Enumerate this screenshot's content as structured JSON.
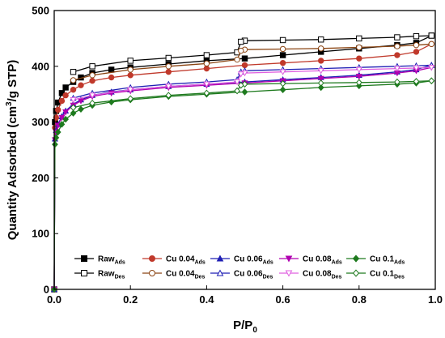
{
  "chart_data": {
    "type": "scatter",
    "xlabel_main": "P/P",
    "xlabel_sub": "0",
    "ylabel_prefix": "Quantity Adsorbed (cm",
    "ylabel_sup": "3",
    "ylabel_suffix": "/g STP)",
    "xlim": [
      0.0,
      1.0
    ],
    "ylim": [
      0,
      500
    ],
    "xticks": [
      "0.0",
      "0.2",
      "0.4",
      "0.6",
      "0.8",
      "1.0"
    ],
    "yticks": [
      "0",
      "100",
      "200",
      "300",
      "400",
      "500"
    ],
    "grid": false,
    "legend_position": "bottom-right",
    "series": [
      {
        "name": "Raw",
        "sub": "Ads",
        "color": "#000000",
        "marker": "square",
        "filled": true,
        "x": [
          0.0,
          0.002,
          0.005,
          0.01,
          0.02,
          0.03,
          0.05,
          0.07,
          0.1,
          0.15,
          0.2,
          0.3,
          0.4,
          0.5,
          0.6,
          0.7,
          0.8,
          0.9,
          0.95,
          0.99
        ],
        "y": [
          0,
          300,
          320,
          335,
          352,
          362,
          372,
          380,
          388,
          394,
          398,
          404,
          410,
          414,
          420,
          426,
          432,
          438,
          442,
          455
        ]
      },
      {
        "name": "Raw",
        "sub": "Des",
        "color": "#000000",
        "marker": "square",
        "filled": false,
        "x": [
          0.99,
          0.95,
          0.9,
          0.8,
          0.7,
          0.6,
          0.5,
          0.49,
          0.48,
          0.4,
          0.3,
          0.2,
          0.1,
          0.05
        ],
        "y": [
          455,
          454,
          452,
          450,
          448,
          447,
          446,
          444,
          425,
          420,
          415,
          410,
          400,
          390
        ]
      },
      {
        "name": "Cu 0.04",
        "sub": "Ads",
        "color": "#c0392b",
        "marker": "circle",
        "filled": true,
        "x": [
          0.0,
          0.002,
          0.005,
          0.01,
          0.02,
          0.03,
          0.05,
          0.07,
          0.1,
          0.15,
          0.2,
          0.3,
          0.4,
          0.5,
          0.6,
          0.7,
          0.8,
          0.9,
          0.95,
          0.99
        ],
        "y": [
          0,
          290,
          308,
          322,
          338,
          348,
          358,
          366,
          374,
          380,
          384,
          390,
          396,
          402,
          406,
          410,
          414,
          420,
          426,
          440
        ]
      },
      {
        "name": "Cu 0.04",
        "sub": "Des",
        "color": "#8b4513",
        "marker": "circle",
        "filled": false,
        "x": [
          0.99,
          0.95,
          0.9,
          0.8,
          0.7,
          0.6,
          0.5,
          0.49,
          0.48,
          0.4,
          0.3,
          0.2,
          0.1,
          0.05
        ],
        "y": [
          440,
          438,
          436,
          434,
          432,
          431,
          430,
          428,
          412,
          405,
          400,
          394,
          384,
          375
        ]
      },
      {
        "name": "Cu 0.06",
        "sub": "Ads",
        "color": "#1f1fb4",
        "marker": "triangle-up",
        "filled": true,
        "x": [
          0.0,
          0.002,
          0.005,
          0.01,
          0.02,
          0.03,
          0.05,
          0.07,
          0.1,
          0.15,
          0.2,
          0.3,
          0.4,
          0.5,
          0.6,
          0.7,
          0.8,
          0.9,
          0.95,
          0.99
        ],
        "y": [
          0,
          270,
          285,
          296,
          310,
          320,
          332,
          340,
          348,
          354,
          358,
          364,
          368,
          372,
          376,
          380,
          384,
          390,
          394,
          402
        ]
      },
      {
        "name": "Cu 0.06",
        "sub": "Des",
        "color": "#1f1fb4",
        "marker": "triangle-up",
        "filled": false,
        "x": [
          0.99,
          0.95,
          0.9,
          0.8,
          0.7,
          0.6,
          0.5,
          0.49,
          0.48,
          0.4,
          0.3,
          0.2,
          0.1,
          0.05
        ],
        "y": [
          402,
          401,
          400,
          398,
          396,
          394,
          392,
          390,
          376,
          372,
          368,
          362,
          352,
          343
        ]
      },
      {
        "name": "Cu 0.08",
        "sub": "Ads",
        "color": "#b000b0",
        "marker": "triangle-down",
        "filled": true,
        "x": [
          0.0,
          0.002,
          0.005,
          0.01,
          0.02,
          0.03,
          0.05,
          0.07,
          0.1,
          0.15,
          0.2,
          0.3,
          0.4,
          0.5,
          0.6,
          0.7,
          0.8,
          0.9,
          0.95,
          0.99
        ],
        "y": [
          0,
          268,
          282,
          294,
          308,
          318,
          330,
          338,
          346,
          352,
          356,
          362,
          366,
          370,
          374,
          378,
          382,
          388,
          392,
          398
        ]
      },
      {
        "name": "Cu 0.08",
        "sub": "Des",
        "color": "#e060e0",
        "marker": "triangle-down",
        "filled": false,
        "x": [
          0.99,
          0.95,
          0.9,
          0.8,
          0.7,
          0.6,
          0.5,
          0.49,
          0.48,
          0.4,
          0.3,
          0.2,
          0.1,
          0.05
        ],
        "y": [
          398,
          397,
          396,
          394,
          392,
          390,
          388,
          386,
          372,
          368,
          364,
          358,
          348,
          340
        ]
      },
      {
        "name": "Cu 0.1",
        "sub": "Ads",
        "color": "#1e7a1e",
        "marker": "diamond",
        "filled": true,
        "x": [
          0.0,
          0.002,
          0.005,
          0.01,
          0.02,
          0.03,
          0.05,
          0.07,
          0.1,
          0.15,
          0.2,
          0.3,
          0.4,
          0.5,
          0.6,
          0.7,
          0.8,
          0.9,
          0.95,
          0.99
        ],
        "y": [
          0,
          260,
          272,
          282,
          296,
          305,
          316,
          323,
          330,
          336,
          340,
          346,
          350,
          354,
          358,
          362,
          365,
          368,
          370,
          374
        ]
      },
      {
        "name": "Cu 0.1",
        "sub": "Des",
        "color": "#1e7a1e",
        "marker": "diamond",
        "filled": false,
        "x": [
          0.99,
          0.95,
          0.9,
          0.8,
          0.7,
          0.6,
          0.5,
          0.49,
          0.48,
          0.4,
          0.3,
          0.2,
          0.1,
          0.05
        ],
        "y": [
          374,
          373,
          372,
          371,
          370,
          369,
          368,
          366,
          356,
          352,
          348,
          342,
          334,
          326
        ]
      }
    ]
  }
}
